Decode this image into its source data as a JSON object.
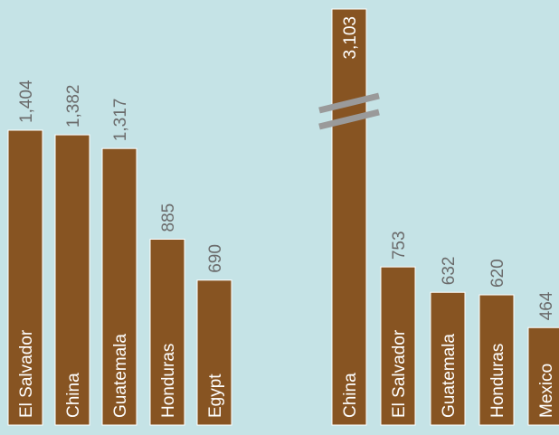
{
  "colors": {
    "background": "#c5e3e6",
    "bar": "#875422",
    "bar_border": "#ffffff",
    "value_label": "#6b6b6b",
    "category_label": "#ffffff",
    "break_mark": "#9a9a9a"
  },
  "chart_data": [
    {
      "type": "bar",
      "orientation": "vertical",
      "categories": [
        "El Salvador",
        "China",
        "Guatemala",
        "Honduras",
        "Egypt"
      ],
      "values": [
        1404,
        1382,
        1317,
        885,
        690
      ],
      "value_labels": [
        "1,404",
        "1,382",
        "1,317",
        "885",
        "690"
      ],
      "axis_break": false,
      "title": "",
      "xlabel": "",
      "ylabel": "",
      "grid": false
    },
    {
      "type": "bar",
      "orientation": "vertical",
      "categories": [
        "China",
        "El Salvador",
        "Guatemala",
        "Honduras",
        "Mexico"
      ],
      "values": [
        3103,
        753,
        632,
        620,
        464
      ],
      "value_labels": [
        "3,103",
        "753",
        "632",
        "620",
        "464"
      ],
      "axis_break": true,
      "broken_bar": "China",
      "title": "",
      "xlabel": "",
      "ylabel": "",
      "grid": false
    }
  ]
}
